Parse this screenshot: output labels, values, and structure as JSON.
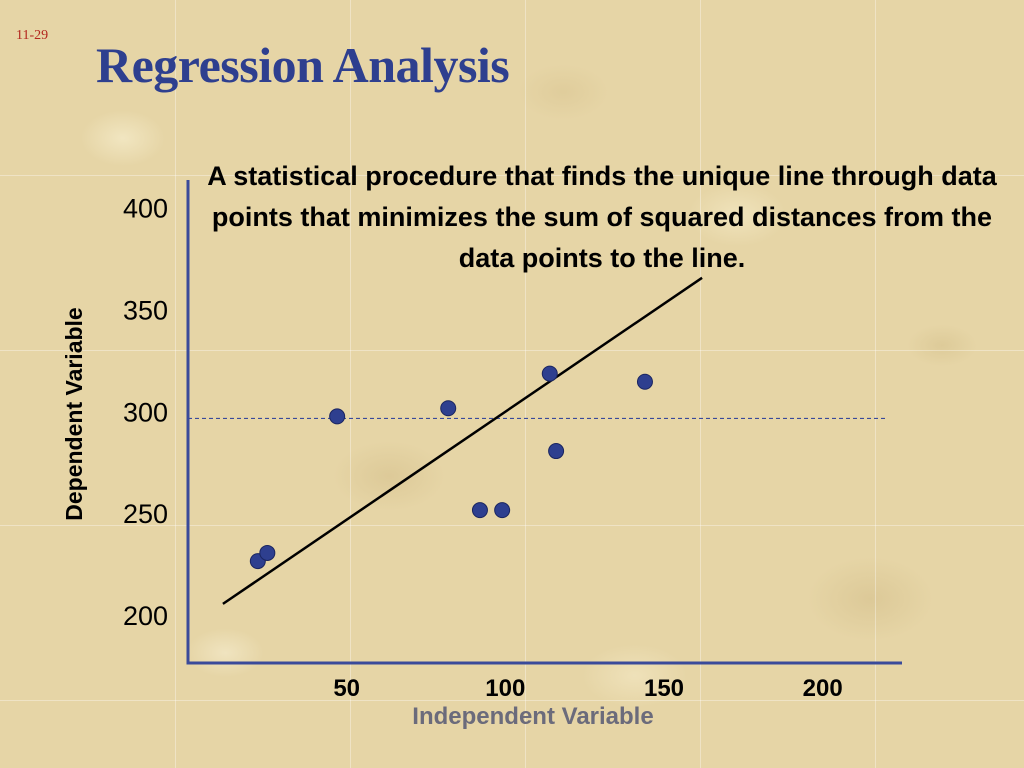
{
  "slide": {
    "number": "11-29",
    "title": "Regression Analysis",
    "definition": "A statistical procedure that finds the unique line through data points that minimizes the sum of squared distances from the data points to the line."
  },
  "colors": {
    "title": "#2e3f8f",
    "slide_number": "#b3261e",
    "axis": "#3a4a9a",
    "points": "#2e3f8f",
    "xlabel": "#6b6b7b"
  },
  "chart_data": {
    "type": "scatter",
    "xlabel": "Independent Variable",
    "ylabel": "Dependent Variable",
    "x_ticks": [
      50,
      100,
      150,
      200
    ],
    "y_ticks": [
      200,
      250,
      300,
      350,
      400
    ],
    "xlim": [
      0,
      225
    ],
    "ylim": [
      177,
      414
    ],
    "points": [
      {
        "x": 22,
        "y": 227
      },
      {
        "x": 25,
        "y": 231
      },
      {
        "x": 47,
        "y": 298
      },
      {
        "x": 82,
        "y": 302
      },
      {
        "x": 92,
        "y": 252
      },
      {
        "x": 99,
        "y": 252
      },
      {
        "x": 114,
        "y": 319
      },
      {
        "x": 116,
        "y": 281
      },
      {
        "x": 144,
        "y": 315
      }
    ],
    "regression_line": {
      "x1": 11,
      "y1": 206,
      "x2": 162,
      "y2": 366
    },
    "mean_line_y": 297,
    "grid": false,
    "legend": "none"
  }
}
